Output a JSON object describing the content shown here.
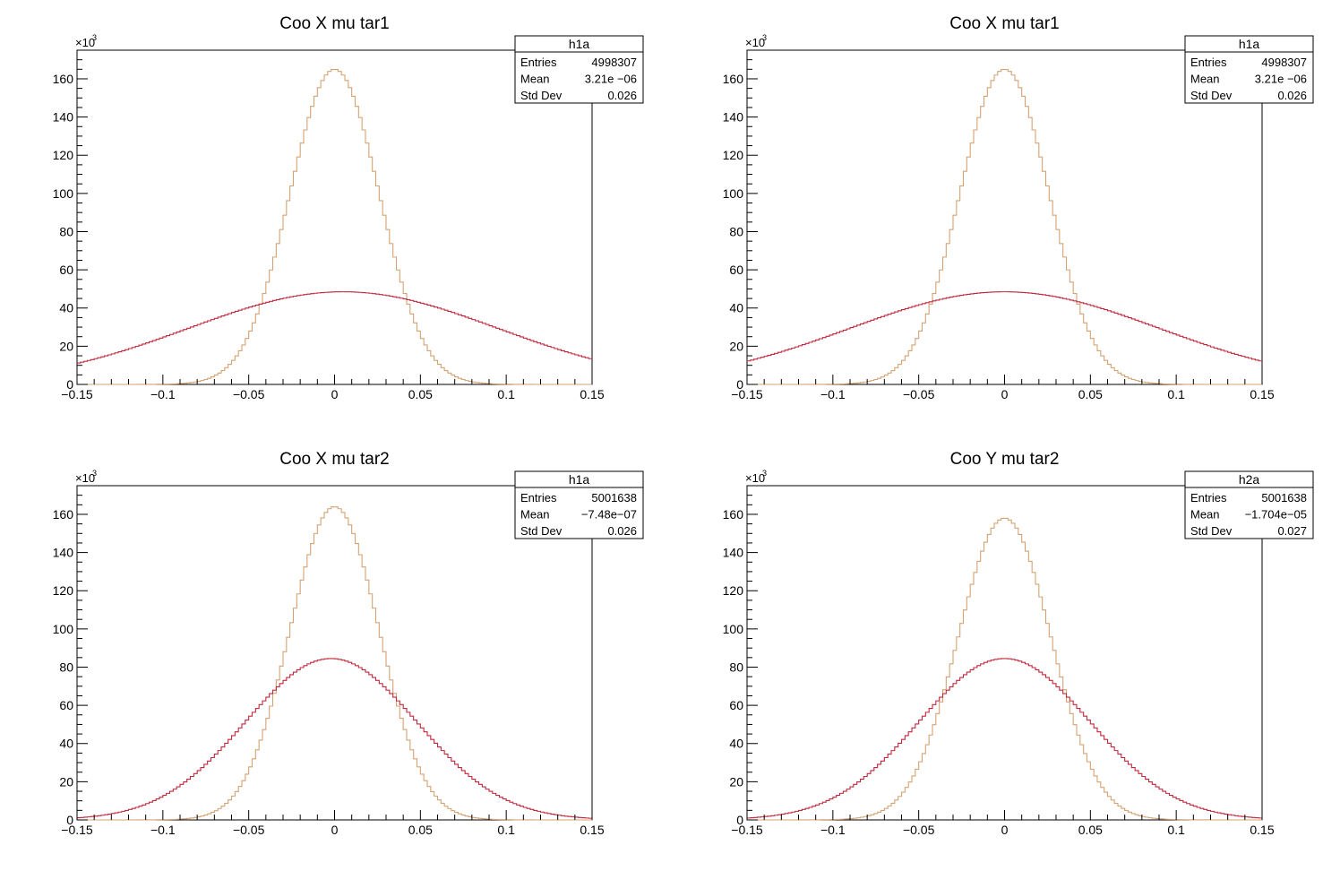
{
  "chart_data": [
    {
      "type": "histogram",
      "title": "Coo X mu tar1",
      "xlim": [
        -0.15,
        0.15
      ],
      "ylim": [
        0,
        175000
      ],
      "x_ticks": [
        "−0.15",
        "−0.1",
        "−0.05",
        "0",
        "0.05",
        "0.1",
        "0.15"
      ],
      "y_ticks": [
        "0",
        "20",
        "40",
        "60",
        "80",
        "100",
        "120",
        "140",
        "160"
      ],
      "y_exponent": "×10",
      "y_exponent_power": "3",
      "stats": {
        "name": "h1a",
        "rows": [
          {
            "label": "Entries",
            "value": "4998307"
          },
          {
            "label": "Mean",
            "value": "3.21e −06"
          },
          {
            "label": "Std Dev",
            "value": "0.026"
          }
        ]
      },
      "series": [
        {
          "color": "#d4a373",
          "shape": "gaussian",
          "mean": 0.0,
          "sigma": 0.026,
          "peak": 165000
        },
        {
          "color": "#c0283c",
          "shape": "gaussian",
          "mean": 0.005,
          "sigma": 0.09,
          "peak": 48500
        }
      ]
    },
    {
      "type": "histogram",
      "title": "Coo X mu tar1",
      "xlim": [
        -0.15,
        0.15
      ],
      "ylim": [
        0,
        175000
      ],
      "x_ticks": [
        "−0.15",
        "−0.1",
        "−0.05",
        "0",
        "0.05",
        "0.1",
        "0.15"
      ],
      "y_ticks": [
        "0",
        "20",
        "40",
        "60",
        "80",
        "100",
        "120",
        "140",
        "160"
      ],
      "y_exponent": "×10",
      "y_exponent_power": "3",
      "stats": {
        "name": "h1a",
        "rows": [
          {
            "label": "Entries",
            "value": "4998307"
          },
          {
            "label": "Mean",
            "value": "3.21e −06"
          },
          {
            "label": "Std Dev",
            "value": "0.026"
          }
        ]
      },
      "series": [
        {
          "color": "#d4a373",
          "shape": "gaussian",
          "mean": 0.0,
          "sigma": 0.026,
          "peak": 165000
        },
        {
          "color": "#c0283c",
          "shape": "gaussian",
          "mean": 0.0,
          "sigma": 0.09,
          "peak": 48500
        }
      ]
    },
    {
      "type": "histogram",
      "title": "Coo X mu tar2",
      "xlim": [
        -0.15,
        0.15
      ],
      "ylim": [
        0,
        175000
      ],
      "x_ticks": [
        "−0.15",
        "−0.1",
        "−0.05",
        "0",
        "0.05",
        "0.1",
        "0.15"
      ],
      "y_ticks": [
        "0",
        "20",
        "40",
        "60",
        "80",
        "100",
        "120",
        "140",
        "160"
      ],
      "y_exponent": "×10",
      "y_exponent_power": "3",
      "stats": {
        "name": "h1a",
        "rows": [
          {
            "label": "Entries",
            "value": "5001638"
          },
          {
            "label": "Mean",
            "value": "−7.48e−07"
          },
          {
            "label": "Std Dev",
            "value": "0.026"
          }
        ]
      },
      "series": [
        {
          "color": "#d4a373",
          "shape": "gaussian",
          "mean": 0.0,
          "sigma": 0.026,
          "peak": 164000
        },
        {
          "color": "#c0283c",
          "shape": "gaussian",
          "mean": -0.002,
          "sigma": 0.05,
          "peak": 84500
        }
      ]
    },
    {
      "type": "histogram",
      "title": "Coo Y mu tar2",
      "xlim": [
        -0.15,
        0.15
      ],
      "ylim": [
        0,
        175000
      ],
      "x_ticks": [
        "−0.15",
        "−0.1",
        "−0.05",
        "0",
        "0.05",
        "0.1",
        "0.15"
      ],
      "y_ticks": [
        "0",
        "20",
        "40",
        "60",
        "80",
        "100",
        "120",
        "140",
        "160"
      ],
      "y_exponent": "×10",
      "y_exponent_power": "3",
      "stats": {
        "name": "h2a",
        "rows": [
          {
            "label": "Entries",
            "value": "5001638"
          },
          {
            "label": "Mean",
            "value": "−1.704e−05"
          },
          {
            "label": "Std Dev",
            "value": "0.027"
          }
        ]
      },
      "series": [
        {
          "color": "#d4a373",
          "shape": "gaussian",
          "mean": 0.0,
          "sigma": 0.027,
          "peak": 158000
        },
        {
          "color": "#c0283c",
          "shape": "gaussian",
          "mean": 0.0,
          "sigma": 0.05,
          "peak": 84500
        }
      ]
    }
  ]
}
